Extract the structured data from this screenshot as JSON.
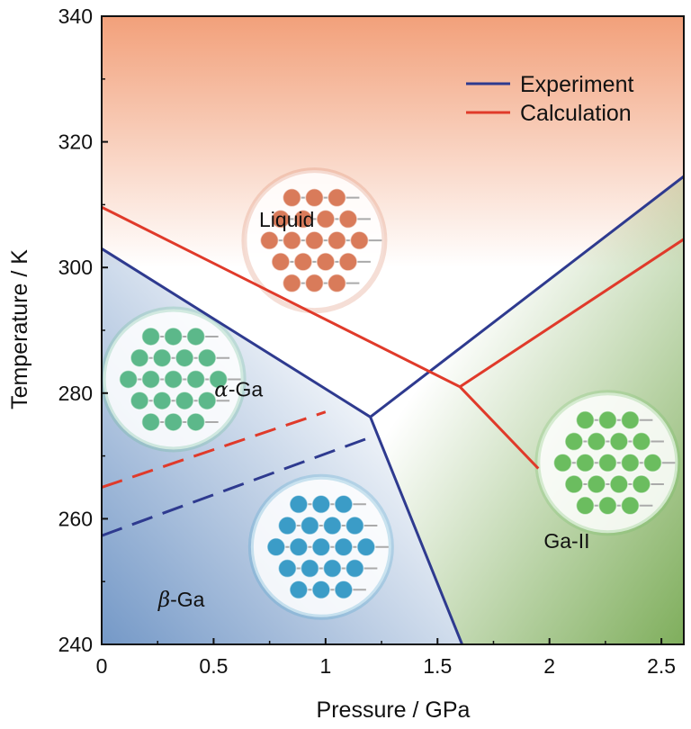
{
  "chart_data": {
    "type": "line",
    "title": "",
    "xlabel": "Pressure / GPa",
    "ylabel": "Temperature / K",
    "xlim": [
      0,
      2.6
    ],
    "ylim": [
      240,
      340
    ],
    "x_ticks": [
      "0",
      "0.5",
      "1",
      "1.5",
      "2",
      "2.5"
    ],
    "y_ticks": [
      "240",
      "260",
      "280",
      "300",
      "320",
      "340"
    ],
    "legend": {
      "position": "top-right",
      "entries": [
        "Experiment",
        "Calculation"
      ]
    },
    "series": [
      {
        "name": "Experiment",
        "color": "#2e3a8f",
        "segments": [
          {
            "style": "solid",
            "points": [
              [
                0,
                303
              ],
              [
                1.2,
                276.2
              ]
            ]
          },
          {
            "style": "solid",
            "points": [
              [
                1.2,
                276.2
              ],
              [
                1.61,
                240
              ]
            ]
          },
          {
            "style": "solid",
            "points": [
              [
                1.2,
                276.2
              ],
              [
                2.6,
                314.5
              ]
            ]
          },
          {
            "style": "dashed",
            "points": [
              [
                0,
                257.3
              ],
              [
                1.18,
                272.7
              ]
            ]
          }
        ]
      },
      {
        "name": "Calculation",
        "color": "#e03a2a",
        "segments": [
          {
            "style": "solid",
            "points": [
              [
                0,
                309.6
              ],
              [
                1.6,
                281
              ]
            ]
          },
          {
            "style": "solid",
            "points": [
              [
                1.6,
                281
              ],
              [
                2.6,
                304.5
              ]
            ]
          },
          {
            "style": "solid",
            "points": [
              [
                1.6,
                281
              ],
              [
                1.95,
                268
              ]
            ]
          },
          {
            "style": "dashed",
            "points": [
              [
                0,
                265
              ],
              [
                1.0,
                277
              ]
            ]
          }
        ]
      }
    ],
    "region_labels": [
      {
        "greek": "",
        "text": "Liquid",
        "x": 0.95,
        "y": 306.5
      },
      {
        "greek": "α",
        "text": "-Ga",
        "x": 0.72,
        "y": 279.5
      },
      {
        "greek": "β",
        "text": "-Ga",
        "x": 0.46,
        "y": 246
      },
      {
        "greek": "",
        "text": "Ga-II",
        "x": 2.18,
        "y": 255.3
      }
    ],
    "structure_images": [
      {
        "icon": "liquid-structure-icon",
        "x": 0.95,
        "y": 304.3,
        "color": "#d97b5a"
      },
      {
        "icon": "alpha-ga-structure-icon",
        "x": 0.32,
        "y": 282.2,
        "color": "#5cb88a"
      },
      {
        "icon": "beta-ga-structure-icon",
        "x": 0.98,
        "y": 255.5,
        "color": "#3b9cc7"
      },
      {
        "icon": "ga-ii-structure-icon",
        "x": 2.26,
        "y": 268.9,
        "color": "#6bbd5f"
      }
    ],
    "background_regions": {
      "liquid": "#f2a07a",
      "alpha_beta": "#6d93c4",
      "ga_ii": "#7fae5c"
    }
  }
}
